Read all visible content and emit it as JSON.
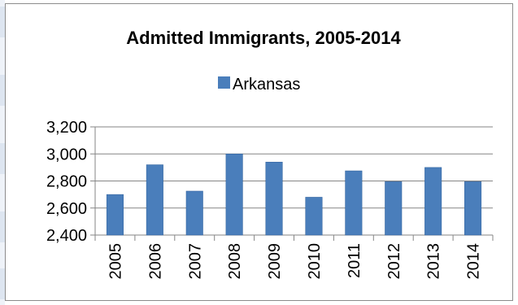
{
  "chart_data": {
    "type": "bar",
    "title": "Admitted Immigrants, 2005-2014",
    "xlabel": "",
    "ylabel": "",
    "categories": [
      "2005",
      "2006",
      "2007",
      "2008",
      "2009",
      "2010",
      "2011",
      "2012",
      "2013",
      "2014"
    ],
    "series": [
      {
        "name": "Arkansas",
        "values": [
          2700,
          2920,
          2725,
          3000,
          2940,
          2680,
          2875,
          2795,
          2900,
          2795
        ]
      }
    ],
    "ylim": [
      2400,
      3200
    ],
    "yticks": [
      "2,400",
      "2,600",
      "2,800",
      "3,000",
      "3,200"
    ],
    "ytick_values": [
      2400,
      2600,
      2800,
      3000,
      3200
    ],
    "grid": true,
    "legend_position": "top",
    "colors": {
      "bar": "#4a7ebb",
      "bar_dark": "#2e5f9a",
      "grid": "#868686"
    }
  }
}
